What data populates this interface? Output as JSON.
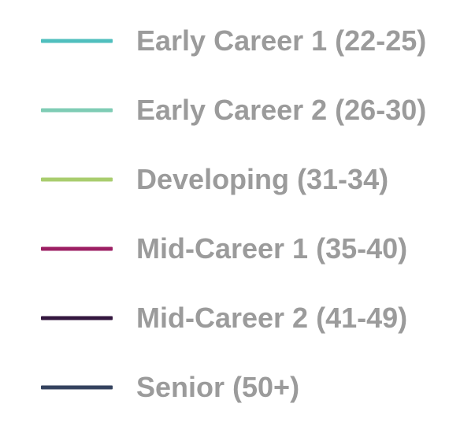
{
  "chart_data": {
    "type": "line",
    "title": "",
    "legend": {
      "placement": "standalone",
      "entries": [
        {
          "name": "Early Career 1 (22-25)",
          "color": "#4fbfbe"
        },
        {
          "name": "Early Career 2 (26-30)",
          "color": "#7fccb5"
        },
        {
          "name": "Developing (31-34)",
          "color": "#a9cd6e"
        },
        {
          "name": "Mid-Career 1 (35-40)",
          "color": "#9c1f63"
        },
        {
          "name": "Mid-Career 2 (41-49)",
          "color": "#34173f"
        },
        {
          "name": "Senior (50+)",
          "color": "#34425e"
        }
      ]
    }
  }
}
